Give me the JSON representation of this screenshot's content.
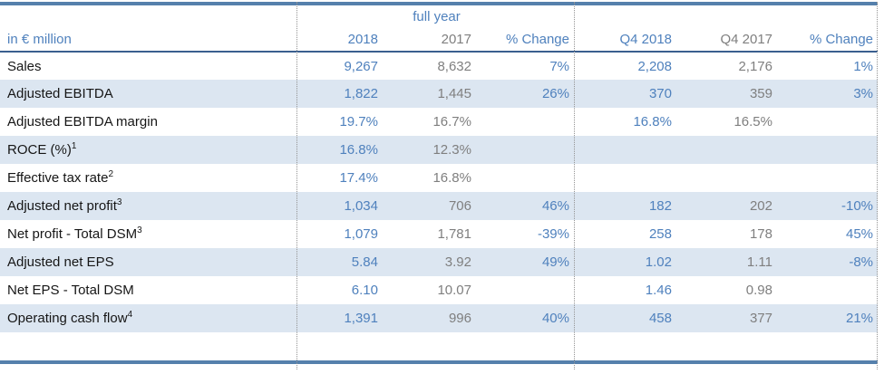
{
  "colors": {
    "accent_blue": "#4f81bd",
    "muted_gray": "#7f7f7f",
    "label_text": "#161616",
    "row_highlight": "#dce6f1",
    "border_thick": "#5580ac",
    "header_rule": "#3a5f8f",
    "dotted_line": "#949494"
  },
  "header": {
    "unit_label": "in € million",
    "group_label": "full year",
    "columns": [
      "2018",
      "2017",
      "% Change",
      "Q4 2018",
      "Q4 2017",
      "% Change"
    ]
  },
  "rows": [
    {
      "label": "Sales",
      "sup": "",
      "fy2018": "9,267",
      "fy2017": "8,632",
      "fy_change": "7%",
      "q4_2018": "2,208",
      "q4_2017": "2,176",
      "q4_change": "1%"
    },
    {
      "label": "Adjusted EBITDA",
      "sup": "",
      "fy2018": "1,822",
      "fy2017": "1,445",
      "fy_change": "26%",
      "q4_2018": "370",
      "q4_2017": "359",
      "q4_change": "3%"
    },
    {
      "label": "Adjusted EBITDA margin",
      "sup": "",
      "fy2018": "19.7%",
      "fy2017": "16.7%",
      "fy_change": "",
      "q4_2018": "16.8%",
      "q4_2017": "16.5%",
      "q4_change": ""
    },
    {
      "label": "ROCE (%)",
      "sup": "1",
      "fy2018": "16.8%",
      "fy2017": "12.3%",
      "fy_change": "",
      "q4_2018": "",
      "q4_2017": "",
      "q4_change": ""
    },
    {
      "label": "Effective tax rate",
      "sup": "2",
      "fy2018": "17.4%",
      "fy2017": "16.8%",
      "fy_change": "",
      "q4_2018": "",
      "q4_2017": "",
      "q4_change": ""
    },
    {
      "label": "Adjusted net profit",
      "sup": "3",
      "fy2018": "1,034",
      "fy2017": "706",
      "fy_change": "46%",
      "q4_2018": "182",
      "q4_2017": "202",
      "q4_change": "-10%"
    },
    {
      "label": "Net profit - Total DSM",
      "sup": "3",
      "fy2018": "1,079",
      "fy2017": "1,781",
      "fy_change": "-39%",
      "q4_2018": "258",
      "q4_2017": "178",
      "q4_change": "45%"
    },
    {
      "label": "Adjusted net EPS",
      "sup": "",
      "fy2018": "5.84",
      "fy2017": "3.92",
      "fy_change": "49%",
      "q4_2018": "1.02",
      "q4_2017": "1.11",
      "q4_change": "-8%"
    },
    {
      "label": "Net EPS - Total DSM",
      "sup": "",
      "fy2018": "6.10",
      "fy2017": "10.07",
      "fy_change": "",
      "q4_2018": "1.46",
      "q4_2017": "0.98",
      "q4_change": ""
    },
    {
      "label": "Operating cash flow",
      "sup": "4",
      "fy2018": "1,391",
      "fy2017": "996",
      "fy_change": "40%",
      "q4_2018": "458",
      "q4_2017": "377",
      "q4_change": "21%"
    }
  ]
}
